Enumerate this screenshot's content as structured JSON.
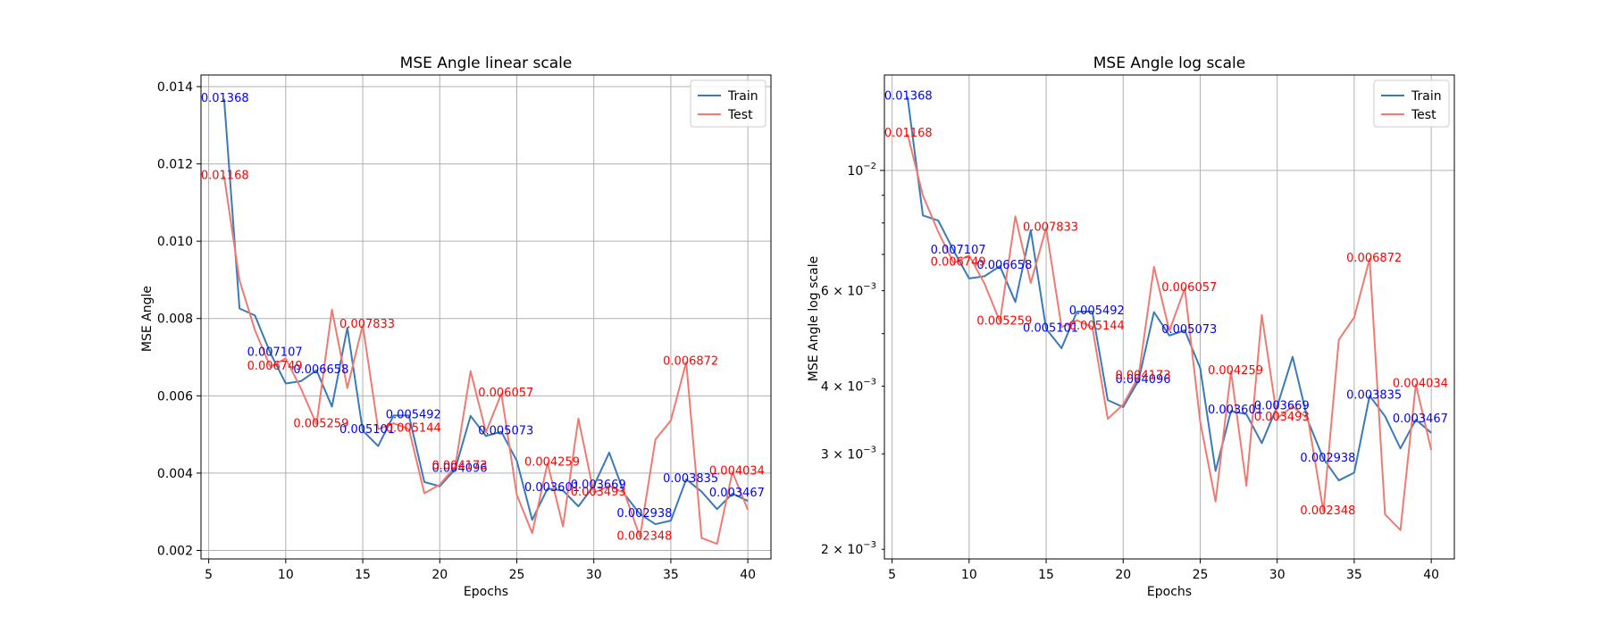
{
  "chart_data": [
    {
      "type": "line",
      "title": "MSE Angle linear scale",
      "xlabel": "Epochs",
      "ylabel": "MSE Angle",
      "yscale": "linear",
      "xlim": [
        4.5,
        41.5
      ],
      "ylim": [
        0.00178,
        0.0143
      ],
      "xticks": [
        5,
        10,
        15,
        20,
        25,
        30,
        35,
        40
      ],
      "xtick_labels": [
        "5",
        "10",
        "15",
        "20",
        "25",
        "30",
        "35",
        "40"
      ],
      "yticks": [
        0.002,
        0.004,
        0.006,
        0.008,
        0.01,
        0.012,
        0.014
      ],
      "ytick_labels": [
        "0.002",
        "0.004",
        "0.006",
        "0.008",
        "0.010",
        "0.012",
        "0.014"
      ],
      "grid": true,
      "legend_position": "top-right",
      "x": [
        6,
        7,
        8,
        9,
        10,
        11,
        12,
        13,
        14,
        15,
        16,
        17,
        18,
        19,
        20,
        21,
        22,
        23,
        24,
        25,
        26,
        27,
        28,
        29,
        30,
        31,
        32,
        33,
        34,
        35,
        36,
        37,
        38,
        39,
        40
      ],
      "series": [
        {
          "name": "Train",
          "color": "#3a7ab8",
          "values": [
            0.01368,
            0.00826,
            0.00808,
            0.00711,
            0.00632,
            0.00638,
            0.00666,
            0.00572,
            0.00776,
            0.0051,
            0.0047,
            0.00549,
            0.00549,
            0.00377,
            0.00366,
            0.0041,
            0.00548,
            0.00496,
            0.00507,
            0.00432,
            0.00279,
            0.0036,
            0.00355,
            0.00314,
            0.00367,
            0.00453,
            0.00345,
            0.00294,
            0.00268,
            0.00277,
            0.00384,
            0.00352,
            0.00307,
            0.00347,
            0.00328
          ]
        },
        {
          "name": "Test",
          "color": "#f07a72",
          "values": [
            0.01168,
            0.00899,
            0.0077,
            0.00675,
            0.00697,
            0.00618,
            0.00526,
            0.00823,
            0.0062,
            0.00783,
            0.00514,
            0.00529,
            0.00514,
            0.00348,
            0.0037,
            0.00417,
            0.00664,
            0.00506,
            0.00606,
            0.00344,
            0.00245,
            0.00426,
            0.00262,
            0.00541,
            0.00349,
            0.00367,
            0.00348,
            0.00235,
            0.00487,
            0.00536,
            0.00687,
            0.00232,
            0.00217,
            0.00403,
            0.00305
          ]
        }
      ],
      "annotations": [
        {
          "series": "Train",
          "x": 6,
          "y": 0.01368,
          "text": "0.01368"
        },
        {
          "series": "Train",
          "x": 9,
          "y": 0.007107,
          "text": "0.007107"
        },
        {
          "series": "Train",
          "x": 12,
          "y": 0.006658,
          "text": "0.006658"
        },
        {
          "series": "Train",
          "x": 15,
          "y": 0.005101,
          "text": "0.005101"
        },
        {
          "series": "Train",
          "x": 18,
          "y": 0.005492,
          "text": "0.005492"
        },
        {
          "series": "Train",
          "x": 21,
          "y": 0.004096,
          "text": "0.004096"
        },
        {
          "series": "Train",
          "x": 24,
          "y": 0.005073,
          "text": "0.005073"
        },
        {
          "series": "Train",
          "x": 27,
          "y": 0.003601,
          "text": "0.003601"
        },
        {
          "series": "Train",
          "x": 30,
          "y": 0.003669,
          "text": "0.003669"
        },
        {
          "series": "Train",
          "x": 33,
          "y": 0.002938,
          "text": "0.002938"
        },
        {
          "series": "Train",
          "x": 36,
          "y": 0.003835,
          "text": "0.003835"
        },
        {
          "series": "Train",
          "x": 39,
          "y": 0.003467,
          "text": "0.003467"
        },
        {
          "series": "Test",
          "x": 6,
          "y": 0.01168,
          "text": "0.01168"
        },
        {
          "series": "Test",
          "x": 9,
          "y": 0.006749,
          "text": "0.006749"
        },
        {
          "series": "Test",
          "x": 12,
          "y": 0.005259,
          "text": "0.005259"
        },
        {
          "series": "Test",
          "x": 15,
          "y": 0.007833,
          "text": "0.007833"
        },
        {
          "series": "Test",
          "x": 18,
          "y": 0.005144,
          "text": "0.005144"
        },
        {
          "series": "Test",
          "x": 21,
          "y": 0.004173,
          "text": "0.004173"
        },
        {
          "series": "Test",
          "x": 24,
          "y": 0.006057,
          "text": "0.006057"
        },
        {
          "series": "Test",
          "x": 27,
          "y": 0.004259,
          "text": "0.004259"
        },
        {
          "series": "Test",
          "x": 30,
          "y": 0.003493,
          "text": "0.003493"
        },
        {
          "series": "Test",
          "x": 33,
          "y": 0.002348,
          "text": "0.002348"
        },
        {
          "series": "Test",
          "x": 36,
          "y": 0.006872,
          "text": "0.006872"
        },
        {
          "series": "Test",
          "x": 39,
          "y": 0.004034,
          "text": "0.004034"
        }
      ]
    },
    {
      "type": "line",
      "title": "MSE Angle log scale",
      "xlabel": "Epochs",
      "ylabel": "MSE Angle log scale",
      "yscale": "log",
      "xlim": [
        4.5,
        41.5
      ],
      "ylim": [
        0.00192,
        0.015
      ],
      "xticks": [
        5,
        10,
        15,
        20,
        25,
        30,
        35,
        40
      ],
      "xtick_labels": [
        "5",
        "10",
        "15",
        "20",
        "25",
        "30",
        "35",
        "40"
      ],
      "yticks_major": [
        0.01
      ],
      "yticks_minor": [
        0.002,
        0.003,
        0.004,
        0.006
      ],
      "ytick_labels": [
        {
          "value": 0.002,
          "base": "2 × 10",
          "exp": "−3"
        },
        {
          "value": 0.003,
          "base": "3 × 10",
          "exp": "−3"
        },
        {
          "value": 0.004,
          "base": "4 × 10",
          "exp": "−3"
        },
        {
          "value": 0.006,
          "base": "6 × 10",
          "exp": "−3"
        },
        {
          "value": 0.01,
          "base": "10",
          "exp": "−2"
        }
      ],
      "grid": true,
      "legend_position": "top-right",
      "x": [
        6,
        7,
        8,
        9,
        10,
        11,
        12,
        13,
        14,
        15,
        16,
        17,
        18,
        19,
        20,
        21,
        22,
        23,
        24,
        25,
        26,
        27,
        28,
        29,
        30,
        31,
        32,
        33,
        34,
        35,
        36,
        37,
        38,
        39,
        40
      ],
      "series": [
        {
          "name": "Train",
          "color": "#3a7ab8",
          "values": [
            0.01368,
            0.00826,
            0.00808,
            0.00711,
            0.00632,
            0.00638,
            0.00666,
            0.00572,
            0.00776,
            0.0051,
            0.0047,
            0.00549,
            0.00549,
            0.00377,
            0.00366,
            0.0041,
            0.00548,
            0.00496,
            0.00507,
            0.00432,
            0.00279,
            0.0036,
            0.00355,
            0.00314,
            0.00367,
            0.00453,
            0.00345,
            0.00294,
            0.00268,
            0.00277,
            0.00384,
            0.00352,
            0.00307,
            0.00347,
            0.00328
          ]
        },
        {
          "name": "Test",
          "color": "#f07a72",
          "values": [
            0.01168,
            0.00899,
            0.0077,
            0.00675,
            0.00697,
            0.00618,
            0.00526,
            0.00823,
            0.0062,
            0.00783,
            0.00514,
            0.00529,
            0.00514,
            0.00348,
            0.0037,
            0.00417,
            0.00664,
            0.00506,
            0.00606,
            0.00344,
            0.00245,
            0.00426,
            0.00262,
            0.00541,
            0.00349,
            0.00367,
            0.00348,
            0.00235,
            0.00487,
            0.00536,
            0.00687,
            0.00232,
            0.00217,
            0.00403,
            0.00305
          ]
        }
      ],
      "annotations": [
        {
          "series": "Train",
          "x": 6,
          "y": 0.01368,
          "text": "0.01368"
        },
        {
          "series": "Train",
          "x": 9,
          "y": 0.007107,
          "text": "0.007107"
        },
        {
          "series": "Train",
          "x": 12,
          "y": 0.006658,
          "text": "0.006658"
        },
        {
          "series": "Train",
          "x": 15,
          "y": 0.005101,
          "text": "0.005101"
        },
        {
          "series": "Train",
          "x": 18,
          "y": 0.005492,
          "text": "0.005492"
        },
        {
          "series": "Train",
          "x": 21,
          "y": 0.004096,
          "text": "0.004096"
        },
        {
          "series": "Train",
          "x": 24,
          "y": 0.005073,
          "text": "0.005073"
        },
        {
          "series": "Train",
          "x": 27,
          "y": 0.003601,
          "text": "0.003601"
        },
        {
          "series": "Train",
          "x": 30,
          "y": 0.003669,
          "text": "0.003669"
        },
        {
          "series": "Train",
          "x": 33,
          "y": 0.002938,
          "text": "0.002938"
        },
        {
          "series": "Train",
          "x": 36,
          "y": 0.003835,
          "text": "0.003835"
        },
        {
          "series": "Train",
          "x": 39,
          "y": 0.003467,
          "text": "0.003467"
        },
        {
          "series": "Test",
          "x": 6,
          "y": 0.01168,
          "text": "0.01168"
        },
        {
          "series": "Test",
          "x": 9,
          "y": 0.006749,
          "text": "0.006749"
        },
        {
          "series": "Test",
          "x": 12,
          "y": 0.005259,
          "text": "0.005259"
        },
        {
          "series": "Test",
          "x": 15,
          "y": 0.007833,
          "text": "0.007833"
        },
        {
          "series": "Test",
          "x": 18,
          "y": 0.005144,
          "text": "0.005144"
        },
        {
          "series": "Test",
          "x": 21,
          "y": 0.004173,
          "text": "0.004173"
        },
        {
          "series": "Test",
          "x": 24,
          "y": 0.006057,
          "text": "0.006057"
        },
        {
          "series": "Test",
          "x": 27,
          "y": 0.004259,
          "text": "0.004259"
        },
        {
          "series": "Test",
          "x": 30,
          "y": 0.003493,
          "text": "0.003493"
        },
        {
          "series": "Test",
          "x": 33,
          "y": 0.002348,
          "text": "0.002348"
        },
        {
          "series": "Test",
          "x": 36,
          "y": 0.006872,
          "text": "0.006872"
        },
        {
          "series": "Test",
          "x": 39,
          "y": 0.004034,
          "text": "0.004034"
        }
      ]
    }
  ],
  "annotation_colors": {
    "Train": "#0000ff",
    "Test": "#ff0000"
  }
}
